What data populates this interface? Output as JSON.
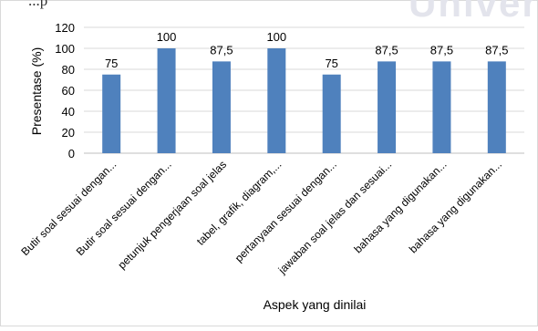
{
  "header": {
    "text": "...p",
    "watermark": "Universitas"
  },
  "chart_data": {
    "type": "bar",
    "title": "",
    "xlabel": "Aspek yang dinilai",
    "ylabel": "Presentase (%)",
    "ylim": [
      0,
      120
    ],
    "yticks": [
      0,
      20,
      40,
      60,
      80,
      100,
      120
    ],
    "ytick_labels": [
      "0",
      "20",
      "40",
      "60",
      "80",
      "100",
      "120"
    ],
    "grid": true,
    "legend": "none",
    "bar_color": "#4f81bd",
    "categories": [
      "Butir soal sesuai dengan...",
      "Butir soal sesuai dengan...",
      "petunjuk pengerjaan soal jelas",
      "tabel, grafik, diagram,...",
      "pertanyaan sesuai dengan...",
      "jawaban soal jelas dan sesuai...",
      "bahasa yang digunakan...",
      "bahasa yang digunakan..."
    ],
    "values": [
      75,
      100,
      87.5,
      100,
      75,
      87.5,
      87.5,
      87.5
    ],
    "data_labels": [
      "75",
      "100",
      "87,5",
      "100",
      "75",
      "87,5",
      "87,5",
      "87,5"
    ]
  }
}
